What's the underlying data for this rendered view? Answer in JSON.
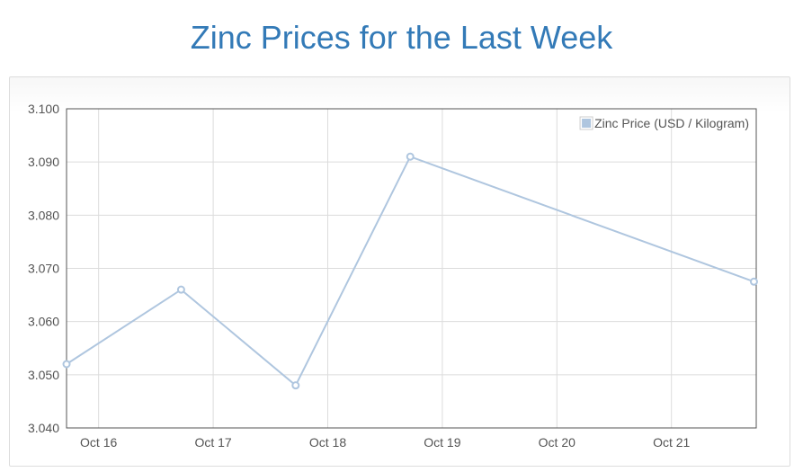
{
  "page": {
    "title": "Zinc Prices for the Last Week"
  },
  "colors": {
    "title": "#337ab7",
    "series": "#afc6df",
    "grid": "#dcdcdc",
    "axis": "#545454"
  },
  "chart_data": {
    "type": "line",
    "title": "Zinc Prices for the Last Week",
    "xlabel": "",
    "ylabel": "",
    "x_ticks": [
      "Oct 16",
      "Oct 17",
      "Oct 18",
      "Oct 19",
      "Oct 20",
      "Oct 21"
    ],
    "x_tick_days": [
      16,
      17,
      18,
      19,
      20,
      21
    ],
    "xlim": [
      15.72,
      21.74
    ],
    "ylim": [
      3.04,
      3.1
    ],
    "y_ticks": [
      "3.040",
      "3.050",
      "3.060",
      "3.070",
      "3.080",
      "3.090",
      "3.100"
    ],
    "y_tick_values": [
      3.04,
      3.05,
      3.06,
      3.07,
      3.08,
      3.09,
      3.1
    ],
    "grid": true,
    "legend_position": "top-right",
    "series": [
      {
        "name": "Zinc Price (USD / Kilogram)",
        "x": [
          15.72,
          16.72,
          17.72,
          18.72,
          21.72
        ],
        "y": [
          3.052,
          3.066,
          3.048,
          3.091,
          3.0675
        ]
      }
    ]
  }
}
